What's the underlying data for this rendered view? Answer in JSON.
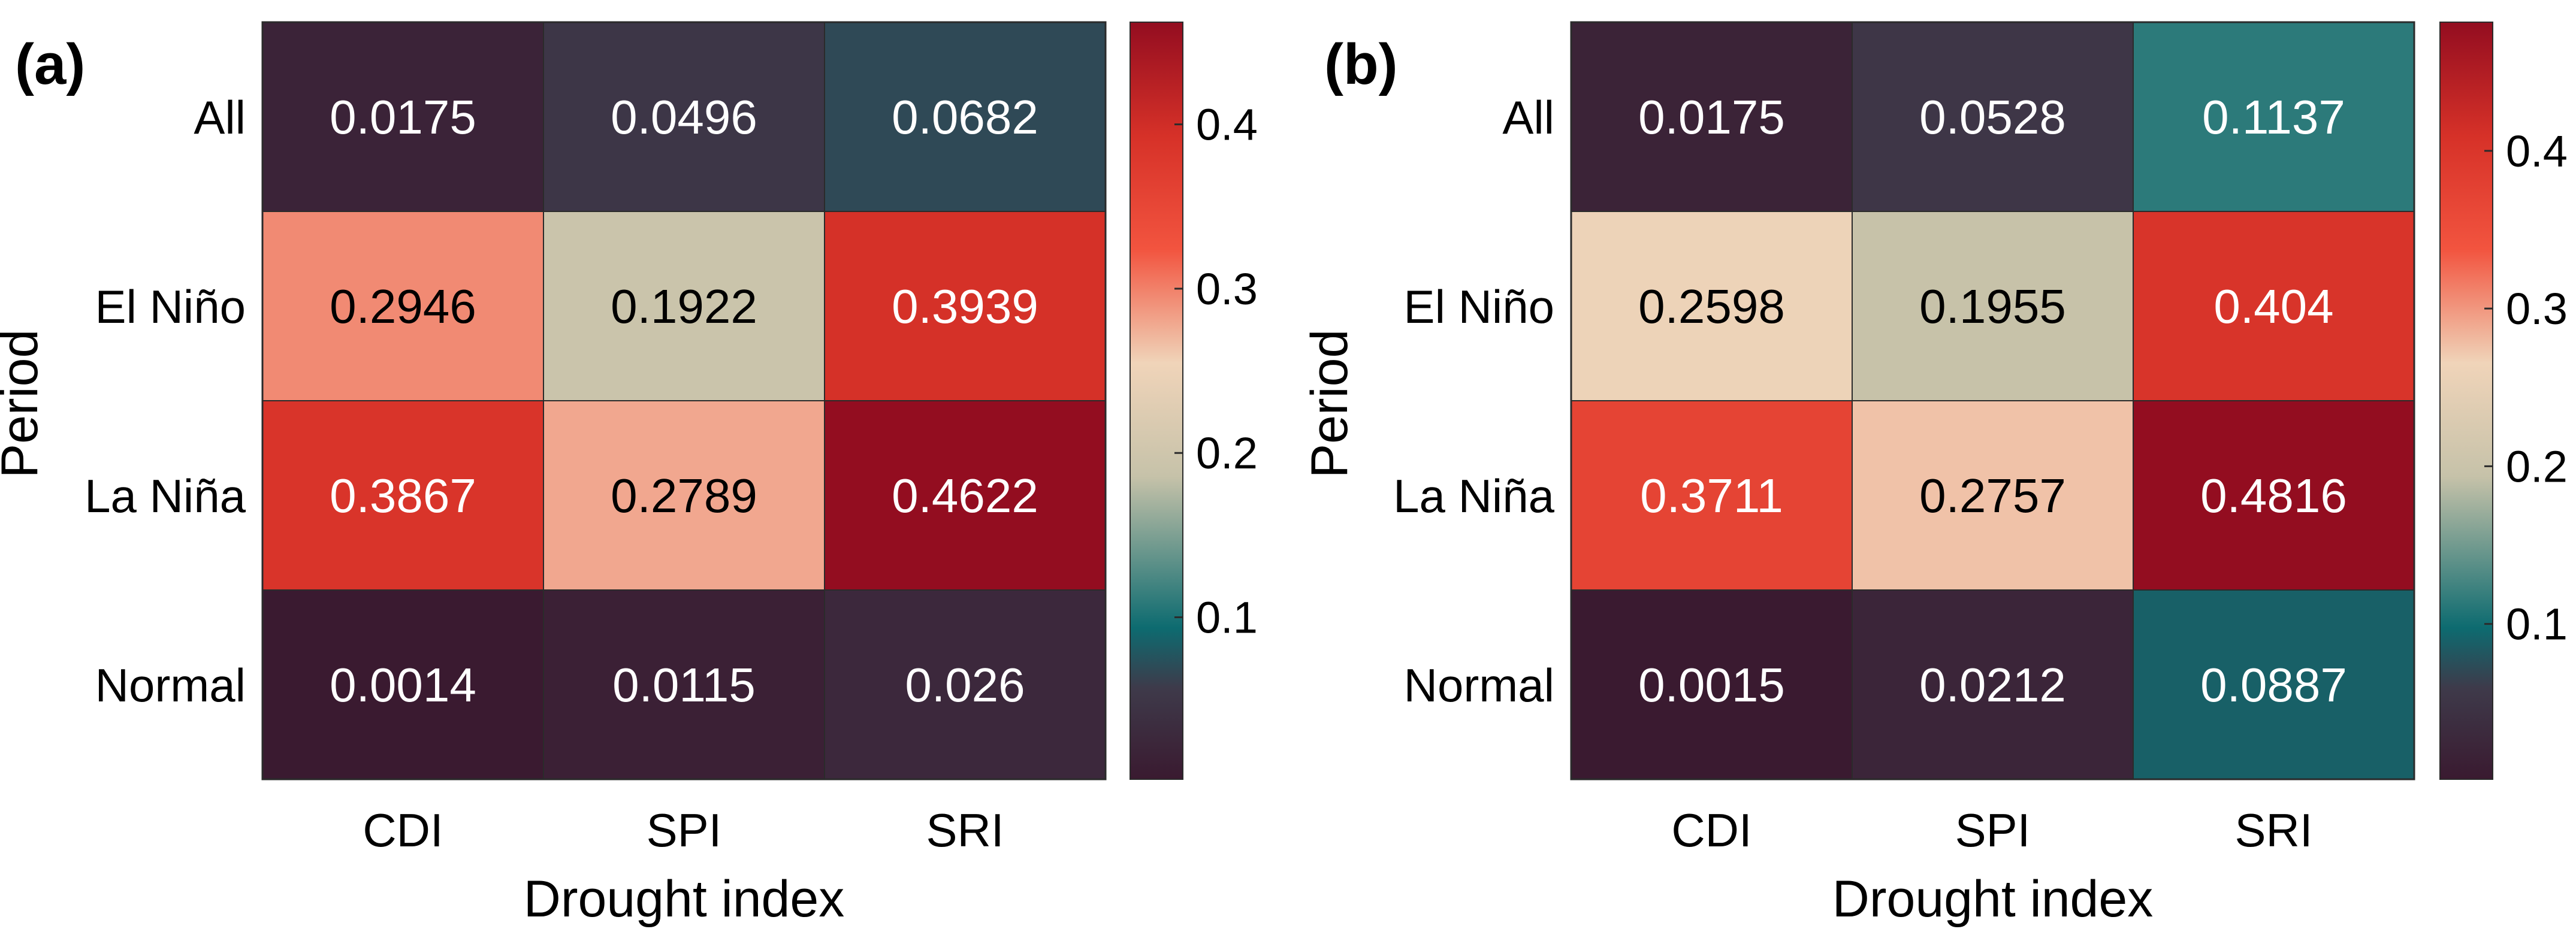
{
  "chart_data": [
    {
      "type": "heatmap",
      "panel_label": "(a)",
      "xlabel": "Drought index",
      "ylabel": "Period",
      "x": [
        "CDI",
        "SPI",
        "SRI"
      ],
      "y": [
        "All",
        "El Niño",
        "La Niña",
        "Normal"
      ],
      "values": [
        [
          0.0175,
          0.0496,
          0.0682
        ],
        [
          0.2946,
          0.1922,
          0.3939
        ],
        [
          0.3867,
          0.2789,
          0.4622
        ],
        [
          0.0014,
          0.0115,
          0.026
        ]
      ],
      "value_labels": [
        [
          "0.0175",
          "0.0496",
          "0.0682"
        ],
        [
          "0.2946",
          "0.1922",
          "0.3939"
        ],
        [
          "0.3867",
          "0.2789",
          "0.4622"
        ],
        [
          "0.0014",
          "0.0115",
          "0.026"
        ]
      ],
      "colorbar": {
        "ticks": [
          0.1,
          0.2,
          0.3,
          0.4
        ],
        "tick_labels": [
          "0.1",
          "0.2",
          "0.3",
          "0.4"
        ],
        "range": [
          0.0014,
          0.4622
        ]
      }
    },
    {
      "type": "heatmap",
      "panel_label": "(b)",
      "xlabel": "Drought index",
      "ylabel": "Period",
      "x": [
        "CDI",
        "SPI",
        "SRI"
      ],
      "y": [
        "All",
        "El Niño",
        "La Niña",
        "Normal"
      ],
      "values": [
        [
          0.0175,
          0.0528,
          0.1137
        ],
        [
          0.2598,
          0.1955,
          0.404
        ],
        [
          0.3711,
          0.2757,
          0.4816
        ],
        [
          0.0015,
          0.0212,
          0.0887
        ]
      ],
      "value_labels": [
        [
          "0.0175",
          "0.0528",
          "0.1137"
        ],
        [
          "0.2598",
          "0.1955",
          "0.404"
        ],
        [
          "0.3711",
          "0.2757",
          "0.4816"
        ],
        [
          "0.0015",
          "0.0212",
          "0.0887"
        ]
      ],
      "colorbar": {
        "ticks": [
          0.1,
          0.2,
          0.3,
          0.4
        ],
        "tick_labels": [
          "0.1",
          "0.2",
          "0.3",
          "0.4"
        ],
        "range": [
          0.0015,
          0.4816
        ]
      }
    }
  ],
  "colormap": {
    "stops": [
      [
        0.0,
        "#3a1a30"
      ],
      [
        0.12,
        "#3e3a4a"
      ],
      [
        0.2,
        "#0d6b70"
      ],
      [
        0.4,
        "#c6c2a9"
      ],
      [
        0.55,
        "#f0d4b9"
      ],
      [
        0.7,
        "#f2543f"
      ],
      [
        0.85,
        "#d63128"
      ],
      [
        1.0,
        "#930d20"
      ]
    ],
    "light_text_color": "#ffffff",
    "dark_text_color": "#000000"
  }
}
